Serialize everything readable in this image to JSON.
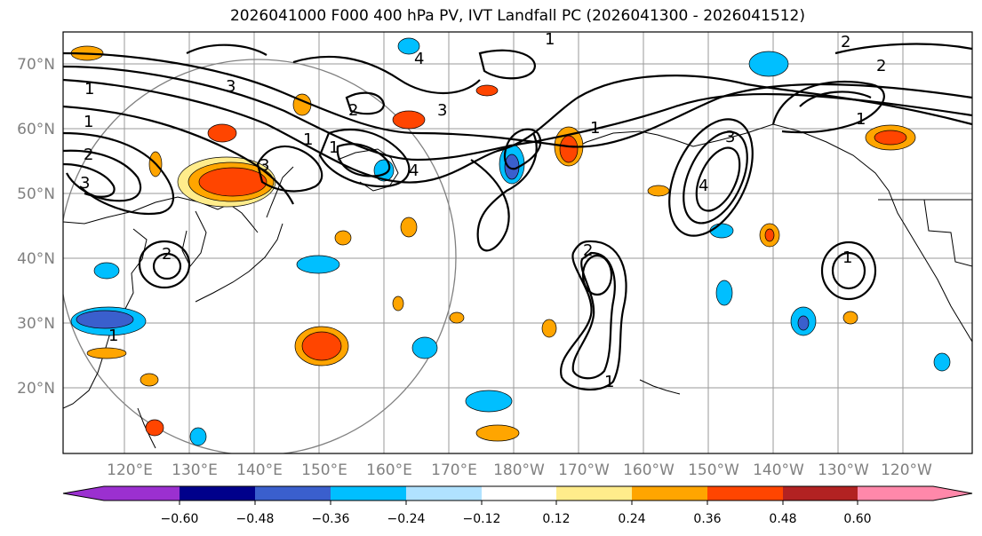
{
  "title": "2026041000 F000 400 hPa PV, IVT Landfall PC (2026041300 - 2026041512)",
  "lat_labels": [
    "70°N",
    "60°N",
    "50°N",
    "40°N",
    "30°N",
    "20°N"
  ],
  "lon_labels": [
    "120°E",
    "130°E",
    "140°E",
    "150°E",
    "160°E",
    "170°E",
    "180°W",
    "170°W",
    "160°W",
    "150°W",
    "140°W",
    "130°W",
    "120°W"
  ],
  "colorbar": {
    "ticks": [
      "−0.60",
      "−0.48",
      "−0.36",
      "−0.24",
      "−0.12",
      "0.12",
      "0.24",
      "0.36",
      "0.48",
      "0.60"
    ],
    "colors": [
      "#9b30d0",
      "#00008b",
      "#3a5fcd",
      "#00bfff",
      "#b0e2ff",
      "#ffffff",
      "#ffec8b",
      "#ffa500",
      "#ff4500",
      "#b22222",
      "#ff88aa"
    ]
  },
  "contour_labels": [
    "3",
    "4",
    "1",
    "2",
    "3",
    "1",
    "2",
    "1",
    "1",
    "4",
    "3",
    "2",
    "1",
    "3",
    "2",
    "2",
    "1",
    "1",
    "2",
    "1",
    "4",
    "3",
    "1",
    "1"
  ]
}
